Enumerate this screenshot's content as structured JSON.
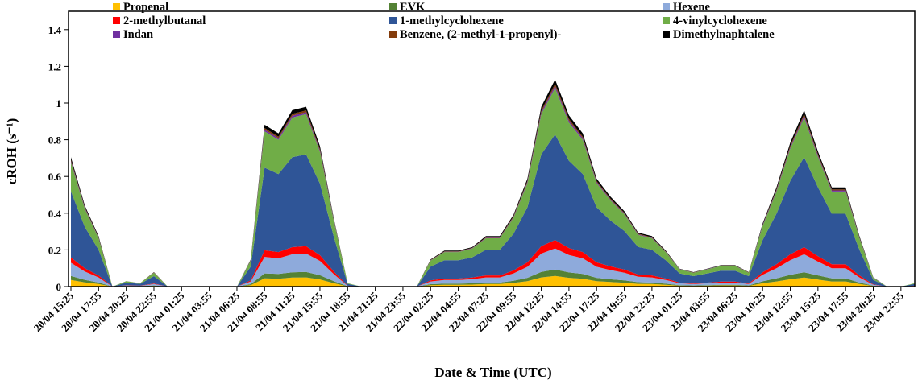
{
  "chart_data": {
    "type": "stacked-area",
    "x_label": "Date & Time (UTC)",
    "y_label": "cROH (s⁻¹)",
    "categories": [
      "20/04 15:25",
      null,
      "20/04 17:55",
      null,
      "20/04 20:25",
      null,
      "20/04 22:55",
      null,
      "21/04 01:25",
      null,
      "21/04 03:55",
      null,
      "21/04 06:25",
      null,
      "21/04 08:55",
      null,
      "21/04 11:25",
      null,
      "21/04 15:55",
      null,
      "21/04 18:55",
      null,
      "21/04 21:25",
      null,
      "21/04 23:55",
      null,
      "22/04 02:25",
      null,
      "22/04 04:55",
      null,
      "22/04 07:25",
      null,
      "22/04 09:55",
      null,
      "22/04 12:25",
      null,
      "22/04 14:55",
      null,
      "22/04 17:25",
      null,
      "22/04 19:55",
      null,
      "22/04 22:25",
      null,
      "23/04 01:25",
      null,
      "23/04 03:55",
      null,
      "23/04 06:25",
      null,
      "23/04 10:25",
      null,
      "23/04 12:55",
      null,
      "23/04 15:25",
      null,
      "23/04 17:55",
      null,
      "23/04 20:25",
      null,
      "23/04 22:55",
      null
    ],
    "ylim": [
      0,
      1.5
    ],
    "yticks": [
      0,
      0.2,
      0.4,
      0.6,
      0.8,
      1,
      1.2,
      1.4
    ],
    "series": [
      {
        "name": "Propenal",
        "color": "#ffc000",
        "values": [
          0.036,
          0.023,
          0.014,
          0,
          0.002,
          0.001,
          0.004,
          0,
          0,
          0,
          0,
          0,
          0,
          0.008,
          0.045,
          0.043,
          0.049,
          0.05,
          0.039,
          0.019,
          0.001,
          0,
          0,
          0,
          0,
          0,
          0.008,
          0.01,
          0.01,
          0.011,
          0.014,
          0.014,
          0.02,
          0.03,
          0.05,
          0.058,
          0.048,
          0.043,
          0.03,
          0.025,
          0.021,
          0.015,
          0.014,
          0.01,
          0.005,
          0.004,
          0.005,
          0.006,
          0.006,
          0.004,
          0.018,
          0.028,
          0.04,
          0.049,
          0.038,
          0.028,
          0.028,
          0.014,
          0.003,
          0,
          0,
          0.001
        ]
      },
      {
        "name": "EVK",
        "color": "#548235",
        "values": [
          0.022,
          0.014,
          0.008,
          0,
          0.001,
          0.001,
          0.002,
          0,
          0,
          0,
          0,
          0,
          0,
          0.005,
          0.027,
          0.026,
          0.029,
          0.03,
          0.023,
          0.011,
          0.001,
          0,
          0,
          0,
          0,
          0,
          0.005,
          0.006,
          0.006,
          0.007,
          0.008,
          0.008,
          0.012,
          0.018,
          0.03,
          0.035,
          0.029,
          0.026,
          0.018,
          0.015,
          0.013,
          0.009,
          0.008,
          0.006,
          0.003,
          0.002,
          0.003,
          0.004,
          0.004,
          0.002,
          0.011,
          0.017,
          0.024,
          0.029,
          0.023,
          0.017,
          0.017,
          0.008,
          0.002,
          0,
          0,
          0.001
        ]
      },
      {
        "name": "Hexene",
        "color": "#8eaadb",
        "values": [
          0.072,
          0.045,
          0.028,
          0,
          0.003,
          0.002,
          0.008,
          0,
          0,
          0,
          0,
          0,
          0,
          0.015,
          0.09,
          0.085,
          0.098,
          0.1,
          0.078,
          0.038,
          0.002,
          0,
          0,
          0,
          0,
          0,
          0.015,
          0.02,
          0.02,
          0.022,
          0.028,
          0.028,
          0.04,
          0.06,
          0.1,
          0.115,
          0.095,
          0.085,
          0.06,
          0.05,
          0.042,
          0.03,
          0.028,
          0.02,
          0.01,
          0.008,
          0.01,
          0.012,
          0.012,
          0.008,
          0.035,
          0.055,
          0.08,
          0.098,
          0.075,
          0.055,
          0.055,
          0.028,
          0.005,
          0,
          0,
          0.002
        ]
      },
      {
        "name": "2-methylbutanal",
        "color": "#ff0000",
        "values": [
          0.029,
          0.018,
          0.011,
          0,
          0.001,
          0.001,
          0.003,
          0,
          0,
          0,
          0,
          0,
          0,
          0.006,
          0.036,
          0.034,
          0.039,
          0.04,
          0.031,
          0.015,
          0.001,
          0,
          0,
          0,
          0,
          0,
          0.006,
          0.008,
          0.008,
          0.009,
          0.011,
          0.011,
          0.016,
          0.024,
          0.04,
          0.046,
          0.038,
          0.034,
          0.024,
          0.02,
          0.017,
          0.012,
          0.011,
          0.008,
          0.004,
          0.003,
          0.004,
          0.005,
          0.005,
          0.003,
          0.014,
          0.022,
          0.032,
          0.039,
          0.03,
          0.022,
          0.022,
          0.011,
          0.002,
          0,
          0,
          0.001
        ]
      },
      {
        "name": "1-methylcyclohexene",
        "color": "#2f5597",
        "values": [
          0.36,
          0.225,
          0.14,
          0,
          0.015,
          0.01,
          0.04,
          0,
          0,
          0,
          0,
          0,
          0,
          0.075,
          0.45,
          0.425,
          0.49,
          0.5,
          0.39,
          0.19,
          0.01,
          0,
          0,
          0,
          0,
          0,
          0.075,
          0.1,
          0.1,
          0.11,
          0.14,
          0.14,
          0.2,
          0.3,
          0.5,
          0.575,
          0.475,
          0.425,
          0.3,
          0.25,
          0.21,
          0.15,
          0.14,
          0.1,
          0.05,
          0.04,
          0.05,
          0.06,
          0.06,
          0.04,
          0.175,
          0.275,
          0.4,
          0.49,
          0.375,
          0.275,
          0.275,
          0.14,
          0.025,
          0,
          0,
          0.01
        ]
      },
      {
        "name": "4-vinylcyclohexene",
        "color": "#70ad47",
        "values": [
          0.158,
          0.099,
          0.062,
          0,
          0.007,
          0.004,
          0.018,
          0,
          0,
          0,
          0,
          0,
          0,
          0.033,
          0.198,
          0.187,
          0.216,
          0.22,
          0.172,
          0.084,
          0.004,
          0,
          0,
          0,
          0,
          0,
          0.033,
          0.044,
          0.044,
          0.048,
          0.062,
          0.062,
          0.088,
          0.132,
          0.22,
          0.253,
          0.209,
          0.187,
          0.132,
          0.11,
          0.092,
          0.066,
          0.062,
          0.044,
          0.022,
          0.018,
          0.022,
          0.026,
          0.026,
          0.018,
          0.077,
          0.121,
          0.176,
          0.216,
          0.165,
          0.121,
          0.121,
          0.062,
          0.011,
          0,
          0,
          0.004
        ]
      },
      {
        "name": "Indan",
        "color": "#7030a0",
        "values": [
          0.007,
          0.005,
          0.003,
          0,
          0,
          0,
          0.001,
          0,
          0,
          0,
          0,
          0,
          0,
          0.002,
          0.009,
          0.009,
          0.01,
          0.01,
          0.008,
          0.004,
          0,
          0,
          0,
          0,
          0,
          0,
          0.002,
          0.002,
          0.002,
          0.002,
          0.003,
          0.003,
          0.004,
          0.006,
          0.01,
          0.012,
          0.01,
          0.009,
          0.006,
          0.005,
          0.004,
          0.003,
          0.003,
          0.002,
          0.001,
          0.001,
          0.001,
          0.001,
          0.001,
          0.001,
          0.004,
          0.006,
          0.008,
          0.01,
          0.008,
          0.006,
          0.006,
          0.003,
          0.001,
          0,
          0,
          0
        ]
      },
      {
        "name": "Benzene, (2-methyl-1-propenyl)-",
        "color": "#843c0c",
        "values": [
          0.007,
          0.004,
          0.003,
          0,
          0,
          0,
          0.001,
          0,
          0,
          0,
          0,
          0,
          0,
          0.001,
          0.009,
          0.008,
          0.01,
          0.01,
          0.008,
          0.004,
          0,
          0,
          0,
          0,
          0,
          0,
          0.001,
          0.002,
          0.002,
          0.002,
          0.003,
          0.003,
          0.004,
          0.006,
          0.01,
          0.011,
          0.01,
          0.008,
          0.006,
          0.005,
          0.004,
          0.003,
          0.003,
          0.002,
          0.001,
          0.001,
          0.001,
          0.001,
          0.001,
          0.001,
          0.003,
          0.006,
          0.008,
          0.01,
          0.007,
          0.006,
          0.006,
          0.003,
          0.001,
          0,
          0,
          0
        ]
      },
      {
        "name": "Dimethylnaphtalene",
        "color": "#000000",
        "values": [
          0.014,
          0.009,
          0.006,
          0,
          0.001,
          0,
          0.002,
          0,
          0,
          0,
          0,
          0,
          0,
          0.003,
          0.018,
          0.017,
          0.02,
          0.02,
          0.016,
          0.008,
          0,
          0,
          0,
          0,
          0,
          0,
          0.003,
          0.004,
          0.004,
          0.004,
          0.006,
          0.006,
          0.008,
          0.012,
          0.02,
          0.023,
          0.019,
          0.017,
          0.012,
          0.01,
          0.008,
          0.006,
          0.006,
          0.004,
          0.002,
          0.002,
          0.002,
          0.002,
          0.002,
          0.002,
          0.007,
          0.011,
          0.016,
          0.02,
          0.015,
          0.011,
          0.011,
          0.006,
          0.001,
          0,
          0,
          0
        ]
      }
    ]
  }
}
